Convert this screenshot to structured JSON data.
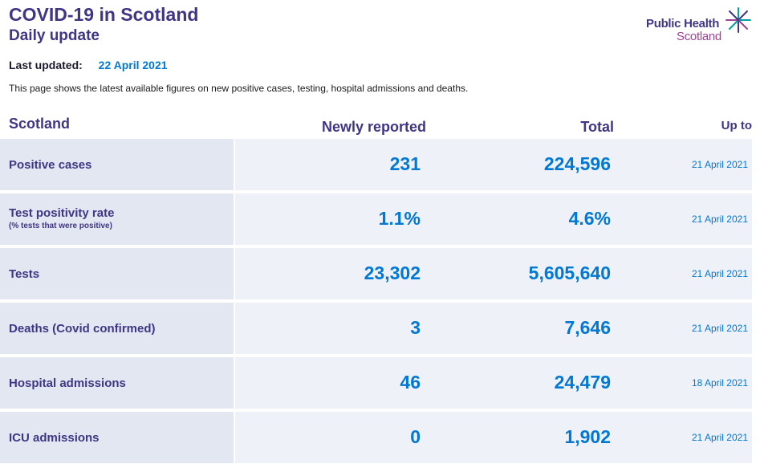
{
  "header": {
    "title": "COVID-19 in Scotland",
    "subtitle": "Daily update",
    "logo_line1": "Public Health",
    "logo_line2": "Scotland"
  },
  "updated": {
    "label": "Last updated:",
    "value": "22 April 2021"
  },
  "intro": "This page shows the latest available figures on new positive cases, testing, hospital admissions and deaths.",
  "table": {
    "columns": {
      "area": "Scotland",
      "new": "Newly reported",
      "total": "Total",
      "upto": "Up to"
    },
    "rows": [
      {
        "label": "Positive cases",
        "sublabel": "",
        "new": "231",
        "total": "224,596",
        "upto": "21 April 2021"
      },
      {
        "label": "Test positivity rate",
        "sublabel": "(% tests that were positive)",
        "new": "1.1%",
        "total": "4.6%",
        "upto": "21 April 2021"
      },
      {
        "label": "Tests",
        "sublabel": "",
        "new": "23,302",
        "total": "5,605,640",
        "upto": "21 April 2021"
      },
      {
        "label": "Deaths (Covid confirmed)",
        "sublabel": "",
        "new": "3",
        "total": "7,646",
        "upto": "21 April 2021"
      },
      {
        "label": "Hospital admissions",
        "sublabel": "",
        "new": "46",
        "total": "24,479",
        "upto": "18 April 2021"
      },
      {
        "label": "ICU admissions",
        "sublabel": "",
        "new": "0",
        "total": "1,902",
        "upto": "21 April 2021"
      }
    ]
  },
  "colors": {
    "brand_purple": "#3f3685",
    "accent_blue": "#0078d4",
    "logo_magenta": "#9b4393",
    "logo_teal": "#00a0a0"
  }
}
